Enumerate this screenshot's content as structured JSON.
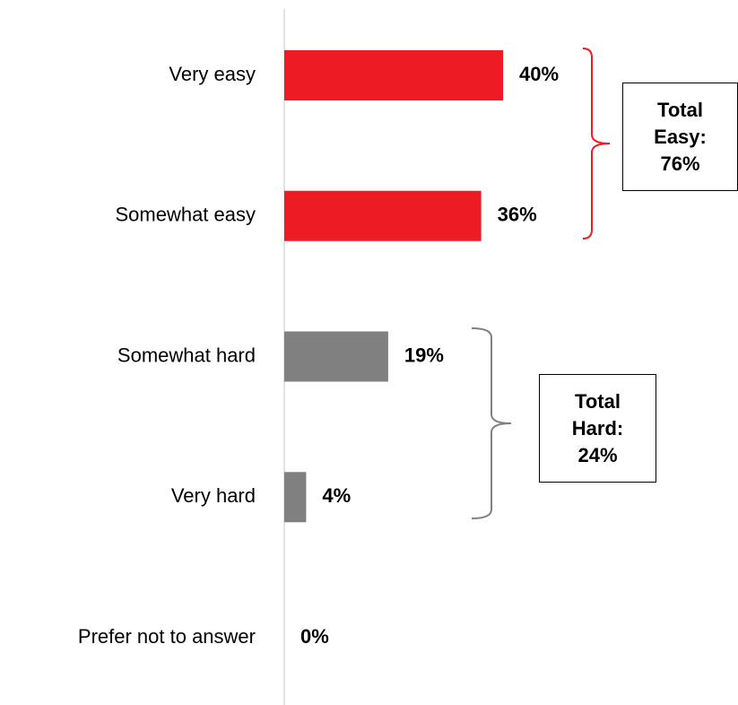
{
  "chart_data": {
    "type": "barh",
    "categories": [
      "Very easy",
      "Somewhat easy",
      "Somewhat hard",
      "Very hard",
      "Prefer not to answer"
    ],
    "values": [
      40,
      36,
      19,
      4,
      0
    ],
    "value_labels": [
      "40%",
      "36%",
      "19%",
      "4%",
      "0%"
    ],
    "colors": [
      "#ed1c24",
      "#ed1c24",
      "#808080",
      "#808080",
      "#808080"
    ],
    "annotations": [
      "Total Easy: 76%",
      "Total Hard: 24%"
    ]
  }
}
